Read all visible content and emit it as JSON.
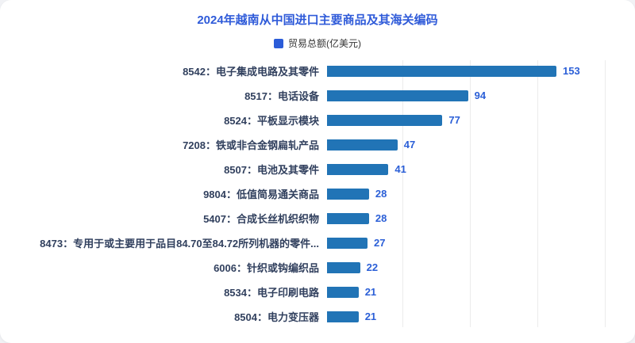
{
  "page": {
    "title": "2024年越南从中国进口主要商品及其海关编码"
  },
  "legend": {
    "label": "贸易总额(亿美元)"
  },
  "colors": {
    "title": "#2f5bd9",
    "bar": "#2174b6",
    "value": "#2b5fd7",
    "label": "#31405e",
    "legend_marker": "#2b5cd8",
    "gridline": "#ececec",
    "card_bg": "#ffffff",
    "page_bg": "#f1f2f5"
  },
  "chart_data": {
    "type": "bar",
    "orientation": "horizontal",
    "title": "2024年越南从中国进口主要商品及其海关编码",
    "legend": [
      "贸易总额(亿美元)"
    ],
    "unit": "亿美元",
    "categories": [
      "8542：电子集成电路及其零件",
      "8517：电话设备",
      "8524：平板显示模块",
      "7208：铁或非合金钢扁轧产品",
      "8507：电池及其零件",
      "9804：低值简易通关商品",
      "5407：合成长丝机织织物",
      "8473：专用于或主要用于品目84.70至84.72所列机器的零件...",
      "6006：针织或钩编织品",
      "8534：电子印刷电路",
      "8504：电力变压器"
    ],
    "values": [
      153,
      94,
      77,
      47,
      41,
      28,
      28,
      27,
      22,
      21,
      21
    ],
    "xlim": [
      0,
      180
    ],
    "grid_steps": [
      45,
      90,
      135,
      180
    ],
    "grid": "vertical-faint",
    "legend_position": "top-center",
    "value_labels": "outside-end"
  }
}
